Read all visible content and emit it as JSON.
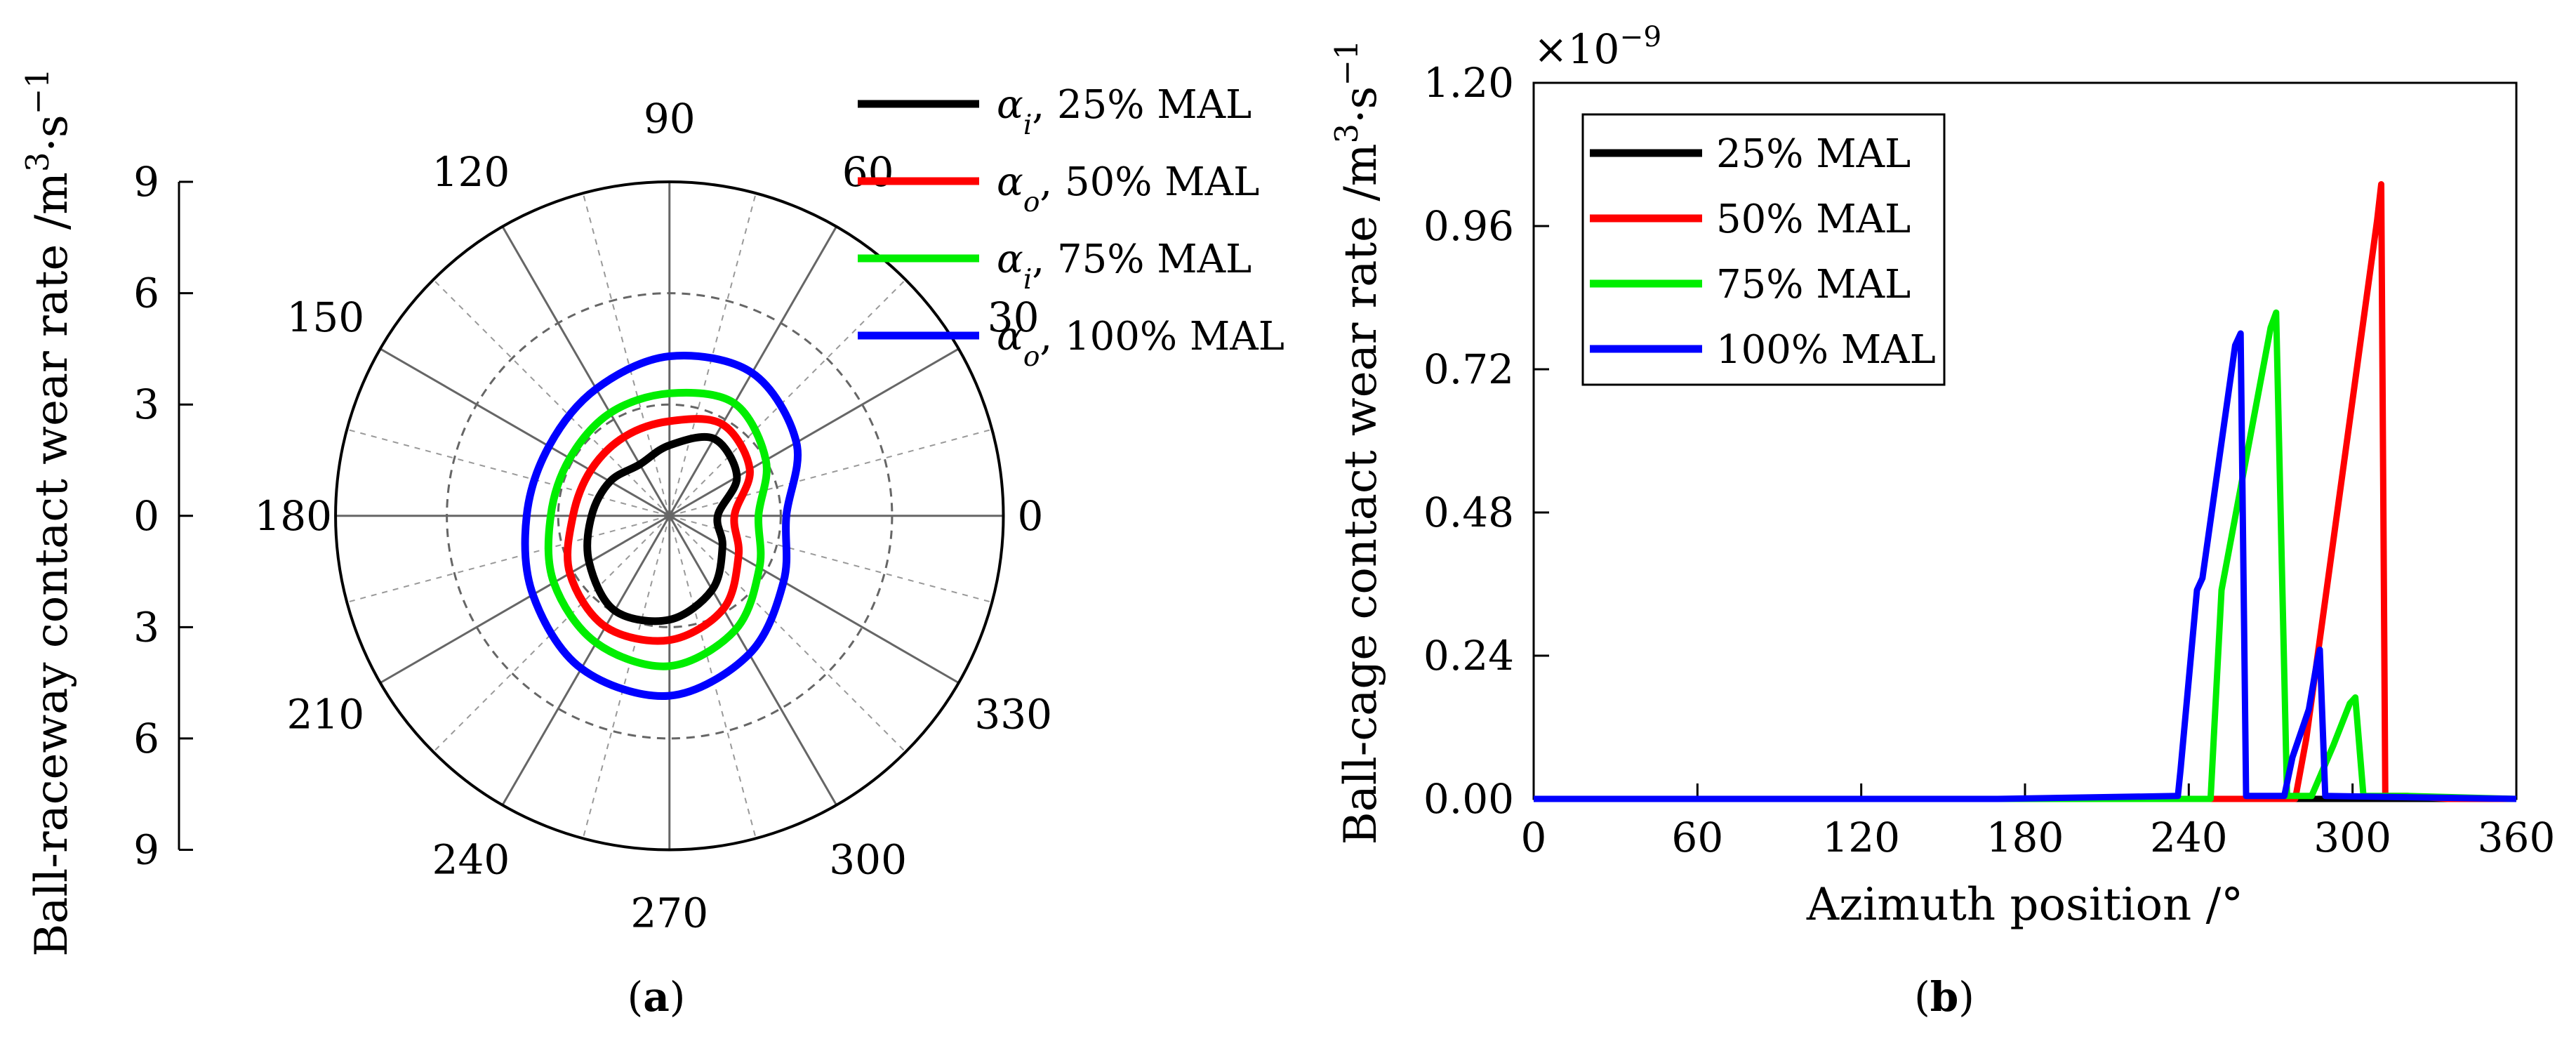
{
  "figure": {
    "panel_a": {
      "caption_open": "(",
      "caption_letter": "a",
      "caption_close": ")"
    },
    "panel_b": {
      "caption_open": "(",
      "caption_letter": "b",
      "caption_close": ")"
    }
  },
  "chart_data": [
    {
      "type": "polar-line",
      "panel": "a",
      "ylabel": "Ball-raceway contact wear rate /m³·s⁻¹",
      "radial_ticks": [
        "9",
        "6",
        "3",
        "0",
        "3",
        "6",
        "9"
      ],
      "angle_ticks": [
        {
          "deg": 0,
          "label": "0"
        },
        {
          "deg": 30,
          "label": "30"
        },
        {
          "deg": 60,
          "label": "60"
        },
        {
          "deg": 90,
          "label": "90"
        },
        {
          "deg": 120,
          "label": "120"
        },
        {
          "deg": 150,
          "label": "150"
        },
        {
          "deg": 180,
          "label": "180"
        },
        {
          "deg": 210,
          "label": "210"
        },
        {
          "deg": 240,
          "label": "240"
        },
        {
          "deg": 270,
          "label": "270"
        },
        {
          "deg": 300,
          "label": "300"
        },
        {
          "deg": 330,
          "label": "330"
        }
      ],
      "r_max": 9,
      "legend_position": "top-right outside",
      "series": [
        {
          "name": "α_i, 25% MAL",
          "greek": "α",
          "sub": "i",
          "label": ", 25% MAL",
          "color": "#000000",
          "angles": [
            0,
            30,
            60,
            90,
            120,
            150,
            180,
            210,
            240,
            270,
            300,
            330,
            360
          ],
          "r": [
            1.3,
            2.1,
            2.4,
            1.9,
            1.6,
            1.85,
            2.1,
            2.5,
            2.95,
            2.8,
            2.3,
            1.65,
            1.3
          ]
        },
        {
          "name": "α_o, 50% MAL",
          "greek": "α",
          "sub": "o",
          "label": ", 50% MAL",
          "color": "#ff0000",
          "angles": [
            0,
            30,
            60,
            90,
            120,
            150,
            180,
            210,
            240,
            270,
            300,
            330,
            360
          ],
          "r": [
            1.75,
            2.5,
            2.85,
            2.55,
            2.45,
            2.45,
            2.6,
            3.1,
            3.45,
            3.35,
            2.9,
            2.15,
            1.75
          ]
        },
        {
          "name": "α_i, 75% MAL",
          "greek": "α",
          "sub": "i",
          "label": ", 75% MAL",
          "color": "#00ee00",
          "angles": [
            0,
            30,
            60,
            90,
            120,
            150,
            180,
            210,
            240,
            270,
            300,
            330,
            360
          ],
          "r": [
            2.4,
            3.0,
            3.5,
            3.3,
            3.2,
            3.1,
            3.2,
            3.6,
            3.95,
            4.05,
            3.55,
            2.8,
            2.4
          ]
        },
        {
          "name": "α_o, 100% MAL",
          "greek": "α",
          "sub": "o",
          "label": ", 100% MAL",
          "color": "#0000ff",
          "angles": [
            0,
            30,
            60,
            90,
            120,
            150,
            180,
            210,
            240,
            270,
            300,
            330,
            360
          ],
          "r": [
            3.15,
            3.95,
            4.45,
            4.3,
            3.95,
            3.75,
            3.85,
            4.25,
            4.75,
            4.85,
            4.3,
            3.55,
            3.15
          ]
        }
      ]
    },
    {
      "type": "line",
      "panel": "b",
      "xlabel": "Azimuth position /°",
      "ylabel": "Ball-cage contact wear rate /m³·s⁻¹",
      "y_exponent_label": "×10⁻⁹",
      "xlim": [
        0,
        360
      ],
      "ylim": [
        0,
        1.2
      ],
      "x_ticks": [
        "0",
        "60",
        "120",
        "180",
        "240",
        "300",
        "360"
      ],
      "y_ticks": [
        "0.00",
        "0.24",
        "0.48",
        "0.72",
        "0.96",
        "1.20"
      ],
      "legend_position": "top-left",
      "series": [
        {
          "name": "25% MAL",
          "color": "#000000",
          "x": [
            0,
            360
          ],
          "y": [
            0,
            0
          ]
        },
        {
          "name": "50% MAL",
          "color": "#ff0000",
          "x": [
            0,
            279,
            283,
            309,
            310.5,
            312,
            320,
            335,
            360
          ],
          "y": [
            0,
            0,
            0.1,
            0.97,
            1.03,
            0.005,
            0.005,
            0,
            0
          ]
        },
        {
          "name": "75% MAL",
          "color": "#00ee00",
          "x": [
            0,
            248,
            252,
            270,
            272,
            276,
            285,
            293,
            299,
            301,
            304,
            320,
            360
          ],
          "y": [
            0,
            0,
            0.35,
            0.79,
            0.815,
            0.005,
            0.005,
            0.09,
            0.16,
            0.17,
            0.005,
            0.005,
            0
          ]
        },
        {
          "name": "100% MAL",
          "color": "#0000ff",
          "x": [
            0,
            170,
            236,
            237,
            243,
            245,
            257,
            259,
            261,
            265,
            275,
            278,
            284,
            287,
            288,
            290,
            360
          ],
          "y": [
            0,
            0,
            0.005,
            0.05,
            0.35,
            0.37,
            0.76,
            0.78,
            0.005,
            0.005,
            0.005,
            0.07,
            0.15,
            0.23,
            0.25,
            0.005,
            0
          ]
        }
      ]
    }
  ]
}
